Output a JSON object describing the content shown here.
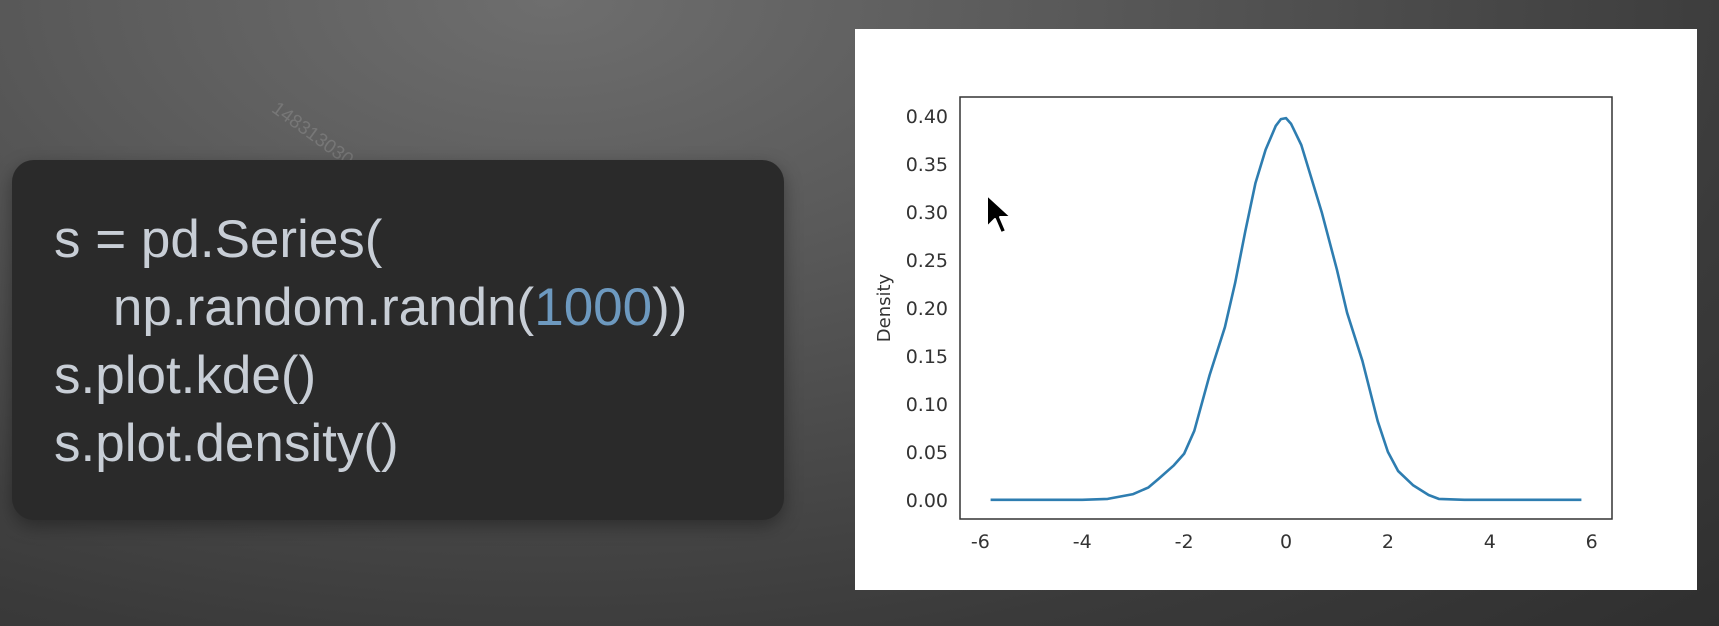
{
  "watermark": "148313030",
  "code": {
    "lines": [
      [
        {
          "text": "s = pd.Series("
        }
      ],
      [
        {
          "text": "    np.random.randn("
        },
        {
          "text": "1000",
          "cls": "num"
        },
        {
          "text": "))"
        }
      ],
      [
        {
          "text": "s.plot.kde()"
        }
      ],
      [
        {
          "text": "s.plot.density()"
        }
      ]
    ],
    "number_color": "#6d99bf",
    "text_color": "#c8ced6"
  },
  "chart_data": {
    "type": "line",
    "title": "",
    "xlabel": "",
    "ylabel": "Density",
    "xlim": [
      -6.4,
      6.4
    ],
    "ylim": [
      -0.02,
      0.42
    ],
    "xticks": [
      -6,
      -4,
      -2,
      0,
      2,
      4,
      6
    ],
    "yticks": [
      "0.00",
      "0.05",
      "0.10",
      "0.15",
      "0.20",
      "0.25",
      "0.30",
      "0.35",
      "0.40"
    ],
    "line_color": "#2e7db0",
    "series": [
      {
        "x": [
          -5.8,
          -5.0,
          -4.0,
          -3.5,
          -3.0,
          -2.7,
          -2.5,
          -2.2,
          -2.0,
          -1.8,
          -1.5,
          -1.2,
          -1.0,
          -0.8,
          -0.6,
          -0.4,
          -0.2,
          -0.1,
          0.0,
          0.1,
          0.3,
          0.5,
          0.7,
          1.0,
          1.2,
          1.5,
          1.8,
          2.0,
          2.2,
          2.5,
          2.8,
          3.0,
          3.5,
          4.0,
          5.0,
          5.8
        ],
        "y": [
          0.0,
          0.0,
          0.0,
          0.001,
          0.006,
          0.013,
          0.022,
          0.036,
          0.048,
          0.072,
          0.13,
          0.18,
          0.226,
          0.28,
          0.33,
          0.365,
          0.39,
          0.397,
          0.398,
          0.392,
          0.37,
          0.335,
          0.3,
          0.24,
          0.195,
          0.145,
          0.082,
          0.05,
          0.03,
          0.015,
          0.005,
          0.001,
          0.0,
          0.0,
          0.0,
          0.0
        ]
      }
    ],
    "highlight_marker": {
      "x": -0.05,
      "color_top": "#4fd3f5",
      "color_bottom": "#4f63e8"
    }
  }
}
